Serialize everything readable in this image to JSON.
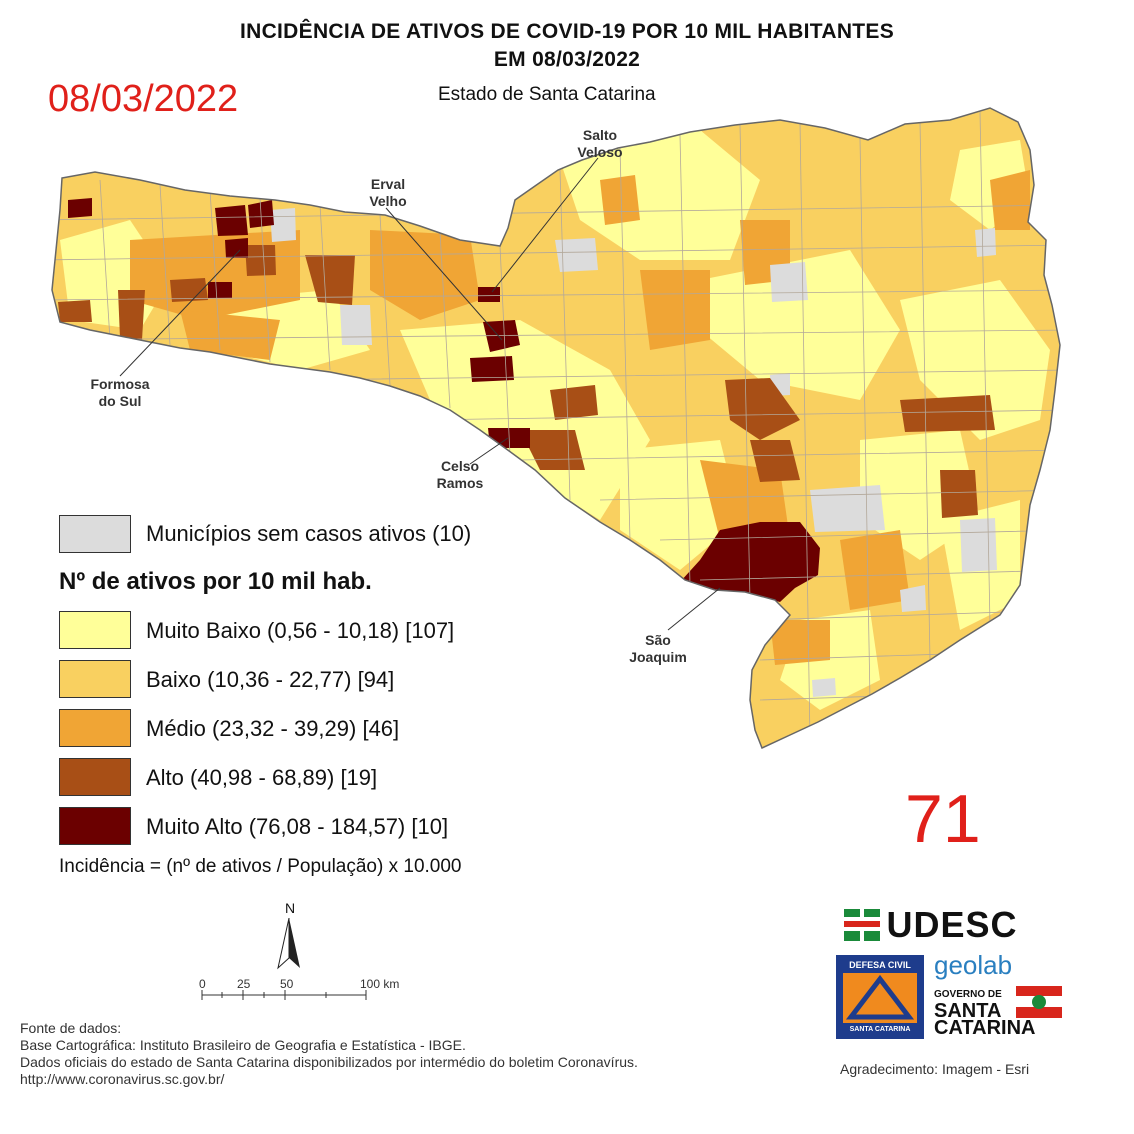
{
  "header": {
    "title_line1": "INCIDÊNCIA DE ATIVOS DE COVID-19 POR 10 MIL HABITANTES",
    "title_line2": "EM 08/03/2022",
    "subtitle": "Estado de Santa Catarina",
    "date_overlay": "08/03/2022"
  },
  "callouts": {
    "salto_veloso": [
      "Salto",
      "Veloso"
    ],
    "erval_velho": [
      "Erval",
      "Velho"
    ],
    "formosa_do_sul": [
      "Formosa",
      "do Sul"
    ],
    "celso_ramos": [
      "Celso",
      "Ramos"
    ],
    "sao_joaquim": [
      "São",
      "Joaquim"
    ]
  },
  "legend": {
    "no_cases": {
      "label": "Municípios sem casos ativos (10)",
      "color": "#dcdcdc"
    },
    "heading": "Nº de ativos por 10 mil hab.",
    "classes": [
      {
        "label": "Muito Baixo (0,56 - 10,18) [107]",
        "color": "#ffff99"
      },
      {
        "label": "Baixo (10,36 - 22,77) [94]",
        "color": "#f9d060"
      },
      {
        "label": "Médio (23,32 - 39,29) [46]",
        "color": "#f0a535"
      },
      {
        "label": "Alto (40,98 - 68,89) [19]",
        "color": "#a84f16"
      },
      {
        "label": "Muito Alto (76,08 - 184,57) [10]",
        "color": "#6b0000"
      }
    ],
    "formula": "Incidência = (nº de ativos / População) x 10.000"
  },
  "overlay_number": "71",
  "north_arrow": {
    "label": "N",
    "icon": "north-arrow-icon"
  },
  "scale_bar": {
    "ticks": [
      "0",
      "25",
      "50",
      "100 km"
    ]
  },
  "sources": {
    "heading": "Fonte de dados:",
    "line1": "Base Cartográfica: Instituto Brasileiro de Geografia e Estatística - IBGE.",
    "line2": "Dados oficiais do estado de Santa Catarina disponibilizados por intermédio do boletim Coronavírus.",
    "line3": "http://www.coronavirus.sc.gov.br/"
  },
  "logos": {
    "udesc": "UDESC",
    "geolab": "geolab",
    "defesa_civil_top": "DEFESA CIVIL",
    "defesa_civil_bottom": "SANTA CATARINA",
    "governo_line1": "GOVERNO DE",
    "governo_line2": "SANTA",
    "governo_line3": "CATARINA"
  },
  "credits": "Agradecimento: Imagem - Esri"
}
